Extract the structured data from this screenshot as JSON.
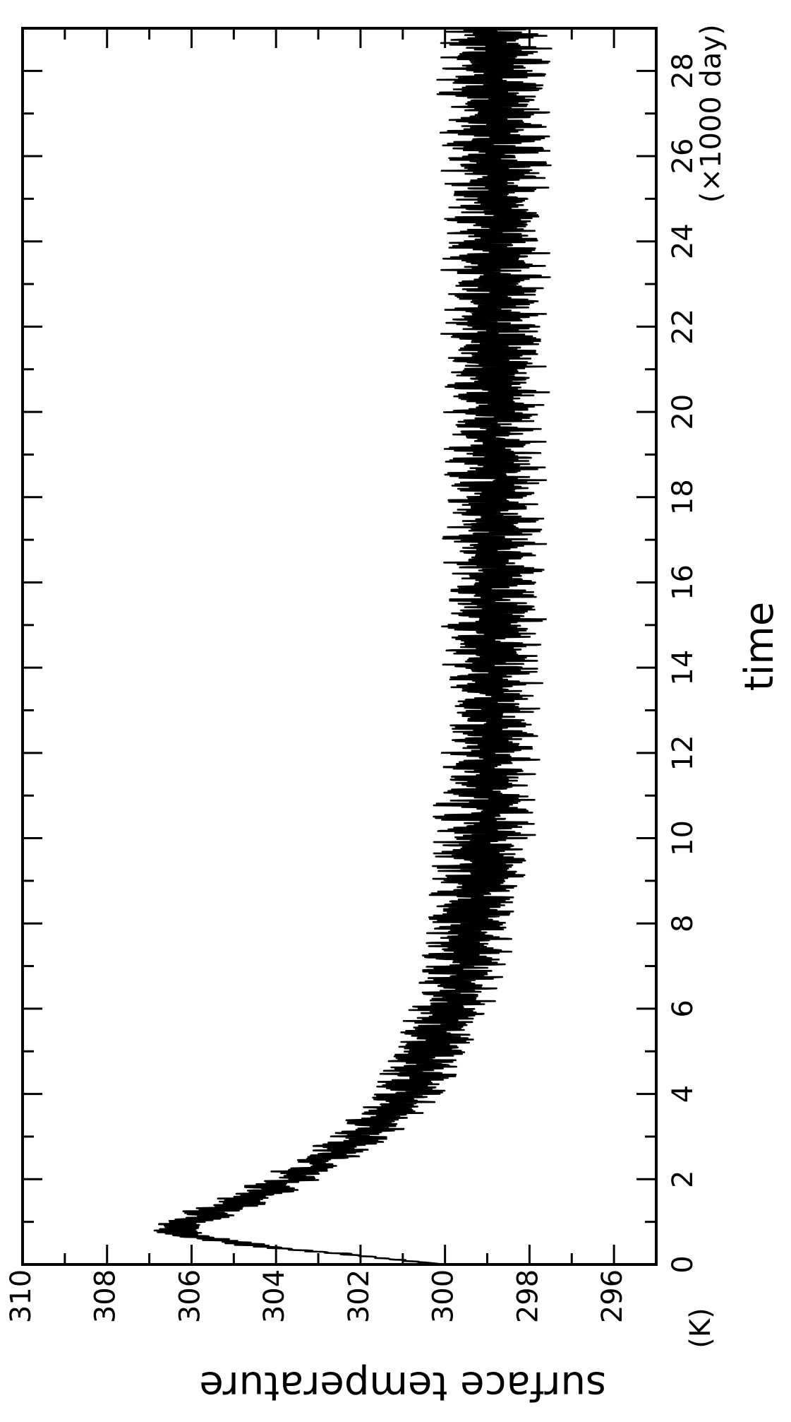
{
  "chart_data": {
    "type": "line",
    "orientation": "rotated-90-clockwise",
    "xlabel": "time",
    "xunit": "(×1000 day)",
    "ylabel": "surface temperature",
    "yunit": "(K)",
    "xlim": [
      0,
      29
    ],
    "ylim": [
      295,
      310
    ],
    "xticks": [
      0,
      2,
      4,
      6,
      8,
      10,
      12,
      14,
      16,
      18,
      20,
      22,
      24,
      26,
      28
    ],
    "yticks": [
      296,
      298,
      300,
      302,
      304,
      306,
      308,
      310
    ],
    "grid": false,
    "line_color": "#000000",
    "trend": {
      "x": [
        0,
        0.2,
        0.5,
        0.8,
        1.0,
        1.3,
        1.6,
        2.0,
        2.5,
        3.0,
        3.5,
        4.0,
        5.0,
        6.0,
        7.0,
        8.0,
        9.0,
        10.0,
        11.0,
        12.0,
        13.0,
        14.0,
        15.0,
        16.0,
        18.0,
        20.0,
        22.0,
        24.0,
        26.0,
        28.0,
        29.0
      ],
      "y": [
        300.0,
        302.0,
        305.0,
        306.5,
        306.0,
        305.3,
        304.5,
        303.6,
        302.8,
        302.0,
        301.4,
        300.9,
        300.3,
        299.9,
        299.6,
        299.4,
        299.2,
        299.1,
        299.0,
        298.95,
        298.9,
        298.9,
        298.85,
        298.85,
        298.8,
        298.8,
        298.8,
        298.8,
        298.8,
        298.8,
        298.8
      ]
    },
    "band": {
      "x": [
        0,
        0.5,
        1,
        2,
        3,
        4,
        5,
        8,
        10,
        15,
        20,
        25,
        29
      ],
      "halfwidth": [
        0.1,
        0.4,
        0.6,
        0.6,
        0.65,
        0.75,
        0.8,
        0.85,
        0.9,
        0.9,
        0.9,
        1.0,
        1.0
      ]
    }
  }
}
